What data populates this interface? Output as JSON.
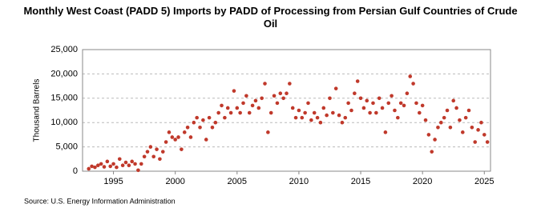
{
  "chart_data": {
    "type": "scatter",
    "title": "Monthly West Coast (PADD 5) Imports by PADD of Processing from Persian Gulf Countries of Crude Oil",
    "y_label": "Thousand Barrels",
    "source": "Source: U.S. Energy Information Administration",
    "color": "#c0392b",
    "grid": true,
    "xlim": [
      1992.5,
      2025.5
    ],
    "xticks": [
      1995,
      2000,
      2005,
      2010,
      2015,
      2020,
      2025
    ],
    "ylim": [
      0,
      25000
    ],
    "yticks": [
      0,
      {
        "value": 5000,
        "label": "5,000"
      },
      {
        "value": 10000,
        "label": "10,000"
      },
      {
        "value": 15000,
        "label": "15,000"
      },
      {
        "value": 20000,
        "label": "20,000"
      },
      {
        "value": 25000,
        "label": "25,000"
      }
    ],
    "x": [
      1993.0,
      1993.25,
      1993.5,
      1993.75,
      1994.0,
      1994.25,
      1994.5,
      1994.75,
      1995.0,
      1995.25,
      1995.5,
      1995.75,
      1996.0,
      1996.25,
      1996.5,
      1996.75,
      1997.0,
      1997.25,
      1997.5,
      1997.75,
      1998.0,
      1998.25,
      1998.5,
      1998.75,
      1999.0,
      1999.25,
      1999.5,
      1999.75,
      2000.0,
      2000.25,
      2000.5,
      2000.75,
      2001.0,
      2001.25,
      2001.5,
      2001.75,
      2002.0,
      2002.25,
      2002.5,
      2002.75,
      2003.0,
      2003.25,
      2003.5,
      2003.75,
      2004.0,
      2004.25,
      2004.5,
      2004.75,
      2005.0,
      2005.25,
      2005.5,
      2005.75,
      2006.0,
      2006.25,
      2006.5,
      2006.75,
      2007.0,
      2007.25,
      2007.5,
      2007.75,
      2008.0,
      2008.25,
      2008.5,
      2008.75,
      2009.0,
      2009.25,
      2009.5,
      2009.75,
      2010.0,
      2010.25,
      2010.5,
      2010.75,
      2011.0,
      2011.25,
      2011.5,
      2011.75,
      2012.0,
      2012.25,
      2012.5,
      2012.75,
      2013.0,
      2013.25,
      2013.5,
      2013.75,
      2014.0,
      2014.25,
      2014.5,
      2014.75,
      2015.0,
      2015.25,
      2015.5,
      2015.75,
      2016.0,
      2016.25,
      2016.5,
      2016.75,
      2017.0,
      2017.25,
      2017.5,
      2017.75,
      2018.0,
      2018.25,
      2018.5,
      2018.75,
      2019.0,
      2019.25,
      2019.5,
      2019.75,
      2020.0,
      2020.25,
      2020.5,
      2020.75,
      2021.0,
      2021.25,
      2021.5,
      2021.75,
      2022.0,
      2022.25,
      2022.5,
      2022.75,
      2023.0,
      2023.25,
      2023.5,
      2023.75,
      2024.0,
      2024.25,
      2024.5,
      2024.75,
      2025.0,
      2025.25
    ],
    "values": [
      500,
      1000,
      800,
      1200,
      1500,
      900,
      2000,
      1000,
      1500,
      800,
      2500,
      1200,
      1800,
      1200,
      2000,
      1500,
      200,
      1500,
      3000,
      4000,
      5000,
      3000,
      4500,
      2500,
      4000,
      6000,
      8000,
      7000,
      6500,
      7000,
      4500,
      8000,
      9000,
      7000,
      10000,
      11000,
      9000,
      10500,
      6500,
      11000,
      9000,
      10000,
      12000,
      13500,
      11000,
      13000,
      12000,
      16500,
      13000,
      12000,
      14000,
      15500,
      12000,
      13500,
      14500,
      13000,
      15000,
      18000,
      8000,
      12000,
      15500,
      14000,
      16000,
      15000,
      16000,
      18000,
      13000,
      11000,
      12500,
      11000,
      12000,
      14000,
      10500,
      12000,
      11000,
      10000,
      13000,
      11500,
      15000,
      12000,
      17000,
      11500,
      10000,
      11000,
      14000,
      12500,
      16000,
      18500,
      15000,
      13000,
      14500,
      12000,
      14000,
      12000,
      15000,
      13000,
      8000,
      14000,
      15500,
      12500,
      11000,
      14000,
      13500,
      16000,
      19500,
      18000,
      14000,
      12000,
      13500,
      10500,
      7500,
      4000,
      6500,
      9000,
      10000,
      11000,
      12500,
      9000,
      14500,
      13000,
      10500,
      8000,
      11000,
      12500,
      9000,
      6000,
      8500,
      10000,
      7500,
      6000
    ]
  }
}
